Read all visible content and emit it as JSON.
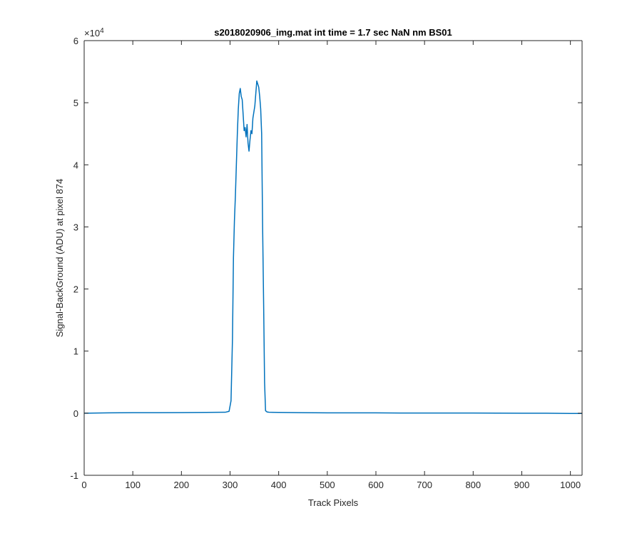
{
  "chart_data": {
    "type": "line",
    "title": "s2018020906_img.mat int time = 1.7 sec  NaN nm BS01",
    "xlabel": "Track Pixels",
    "ylabel": "Signal-BackGround (ADU) at pixel 874",
    "xlim": [
      0,
      1024
    ],
    "ylim": [
      -10000,
      60000
    ],
    "x_ticks": [
      0,
      100,
      200,
      300,
      400,
      500,
      600,
      700,
      800,
      900,
      1000
    ],
    "y_ticks": [
      -10000,
      0,
      10000,
      20000,
      30000,
      40000,
      50000,
      60000
    ],
    "y_tick_labels": [
      "-1",
      "0",
      "1",
      "2",
      "3",
      "4",
      "5",
      "6"
    ],
    "y_exponent_base": "×10",
    "y_exponent_power": "4",
    "grid": false,
    "series": [
      {
        "color": "#0072BD",
        "x": [
          0,
          50,
          100,
          150,
          200,
          250,
          290,
          298,
          302,
          305,
          307,
          309,
          311,
          313,
          315,
          317,
          319,
          321,
          323,
          325,
          327,
          329,
          331,
          333,
          335,
          337,
          339,
          341,
          343,
          345,
          347,
          349,
          351,
          353,
          355,
          357,
          359,
          361,
          363,
          365,
          367,
          369,
          371,
          373,
          376,
          380,
          400,
          450,
          500,
          550,
          600,
          650,
          700,
          750,
          800,
          850,
          900,
          950,
          1000,
          1024
        ],
        "y": [
          0,
          50,
          80,
          90,
          100,
          120,
          150,
          300,
          2000,
          12000,
          25000,
          31000,
          35000,
          40000,
          45000,
          49000,
          51500,
          52300,
          51000,
          50500,
          48000,
          45500,
          46000,
          44500,
          46500,
          43500,
          42200,
          44000,
          45500,
          45000,
          47500,
          48500,
          49500,
          51500,
          53500,
          53000,
          52500,
          51000,
          49000,
          45000,
          30000,
          18000,
          5000,
          400,
          200,
          150,
          120,
          80,
          60,
          50,
          50,
          30,
          30,
          20,
          20,
          10,
          0,
          0,
          -50,
          -50
        ]
      }
    ]
  }
}
